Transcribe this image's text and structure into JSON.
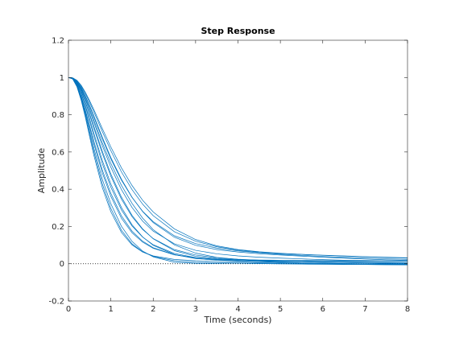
{
  "chart_data": {
    "type": "line",
    "title": "Step Response",
    "xlabel": "Time (seconds)",
    "ylabel": "Amplitude",
    "xlim": [
      0,
      8
    ],
    "ylim": [
      -0.2,
      1.2
    ],
    "xticks": [
      "0",
      "1",
      "2",
      "3",
      "4",
      "5",
      "6",
      "7",
      "8"
    ],
    "yticks": [
      "-0.2",
      "0",
      "0.2",
      "0.4",
      "0.6",
      "0.8",
      "1",
      "1.2"
    ],
    "grid": false,
    "box": true,
    "line_color": "#0072BD",
    "reference_line": {
      "y": 0,
      "style": "dotted",
      "color": "#000000"
    },
    "x": [
      0,
      0.1,
      0.2,
      0.3,
      0.4,
      0.5,
      0.6,
      0.8,
      1.0,
      1.25,
      1.5,
      1.75,
      2.0,
      2.5,
      3.0,
      3.5,
      4.0,
      4.5,
      5.0,
      5.5,
      6.0,
      6.5,
      7.0,
      7.5,
      8.0
    ],
    "series": [
      {
        "values": [
          1.0,
          0.997,
          0.976,
          0.939,
          0.889,
          0.831,
          0.77,
          0.649,
          0.539,
          0.421,
          0.324,
          0.245,
          0.183,
          0.101,
          0.057,
          0.034,
          0.023,
          0.018,
          0.015,
          0.015,
          0.015,
          0.014,
          0.014,
          0.015,
          0.015
        ]
      },
      {
        "values": [
          1.0,
          0.993,
          0.955,
          0.89,
          0.806,
          0.713,
          0.62,
          0.453,
          0.322,
          0.201,
          0.12,
          0.068,
          0.037,
          0.008,
          0.002,
          0.002,
          0.003,
          0.003,
          0.003,
          0.002,
          0.001,
          0.0,
          -0.001,
          -0.002,
          -0.003
        ]
      },
      {
        "values": [
          1.0,
          0.995,
          0.966,
          0.916,
          0.851,
          0.777,
          0.7,
          0.554,
          0.428,
          0.302,
          0.209,
          0.144,
          0.099,
          0.049,
          0.028,
          0.019,
          0.015,
          0.013,
          0.012,
          0.011,
          0.01,
          0.009,
          0.008,
          0.007,
          0.006
        ]
      },
      {
        "values": [
          1.0,
          0.998,
          0.983,
          0.953,
          0.913,
          0.866,
          0.815,
          0.709,
          0.607,
          0.493,
          0.398,
          0.32,
          0.258,
          0.172,
          0.121,
          0.091,
          0.073,
          0.062,
          0.055,
          0.05,
          0.045,
          0.041,
          0.037,
          0.033,
          0.03
        ]
      },
      {
        "values": [
          1.0,
          0.994,
          0.96,
          0.901,
          0.826,
          0.742,
          0.657,
          0.503,
          0.378,
          0.257,
          0.175,
          0.121,
          0.086,
          0.048,
          0.032,
          0.024,
          0.019,
          0.016,
          0.013,
          0.011,
          0.008,
          0.006,
          0.004,
          0.002,
          0.0
        ]
      },
      {
        "values": [
          1.0,
          0.996,
          0.971,
          0.928,
          0.87,
          0.805,
          0.737,
          0.603,
          0.482,
          0.358,
          0.26,
          0.187,
          0.134,
          0.07,
          0.04,
          0.027,
          0.022,
          0.02,
          0.019,
          0.018,
          0.017,
          0.016,
          0.015,
          0.014,
          0.014
        ]
      },
      {
        "values": [
          1.0,
          0.997,
          0.979,
          0.947,
          0.902,
          0.85,
          0.794,
          0.679,
          0.57,
          0.454,
          0.357,
          0.28,
          0.221,
          0.142,
          0.099,
          0.076,
          0.063,
          0.054,
          0.047,
          0.041,
          0.035,
          0.03,
          0.025,
          0.021,
          0.018
        ]
      },
      {
        "values": [
          1.0,
          0.992,
          0.95,
          0.878,
          0.785,
          0.682,
          0.582,
          0.408,
          0.279,
          0.168,
          0.101,
          0.063,
          0.042,
          0.023,
          0.016,
          0.012,
          0.009,
          0.006,
          0.003,
          0.001,
          -0.001,
          -0.003,
          -0.004,
          -0.005,
          -0.006
        ]
      },
      {
        "values": [
          1.0,
          0.996,
          0.974,
          0.935,
          0.882,
          0.822,
          0.759,
          0.633,
          0.518,
          0.398,
          0.302,
          0.229,
          0.175,
          0.107,
          0.072,
          0.053,
          0.042,
          0.035,
          0.03,
          0.026,
          0.022,
          0.019,
          0.017,
          0.015,
          0.013
        ]
      },
      {
        "values": [
          1.0,
          0.995,
          0.964,
          0.912,
          0.843,
          0.766,
          0.686,
          0.537,
          0.411,
          0.289,
          0.203,
          0.143,
          0.102,
          0.055,
          0.033,
          0.022,
          0.016,
          0.012,
          0.008,
          0.005,
          0.003,
          0.001,
          0.0,
          -0.001,
          -0.002
        ]
      },
      {
        "values": [
          1.0,
          0.997,
          0.978,
          0.944,
          0.898,
          0.844,
          0.787,
          0.671,
          0.563,
          0.449,
          0.356,
          0.282,
          0.226,
          0.15,
          0.108,
          0.084,
          0.069,
          0.059,
          0.051,
          0.045,
          0.039,
          0.034,
          0.03,
          0.026,
          0.023
        ]
      },
      {
        "values": [
          1.0,
          0.994,
          0.958,
          0.897,
          0.818,
          0.731,
          0.644,
          0.487,
          0.362,
          0.244,
          0.166,
          0.116,
          0.083,
          0.048,
          0.031,
          0.022,
          0.016,
          0.011,
          0.007,
          0.004,
          0.002,
          0.0,
          -0.001,
          -0.002,
          -0.002
        ]
      },
      {
        "values": [
          1.0,
          0.998,
          0.985,
          0.958,
          0.92,
          0.875,
          0.827,
          0.725,
          0.627,
          0.515,
          0.42,
          0.341,
          0.278,
          0.187,
          0.13,
          0.096,
          0.076,
          0.064,
          0.056,
          0.05,
          0.046,
          0.042,
          0.038,
          0.035,
          0.032
        ]
      },
      {
        "values": [
          1.0,
          0.996,
          0.97,
          0.925,
          0.866,
          0.798,
          0.728,
          0.591,
          0.47,
          0.347,
          0.253,
          0.184,
          0.135,
          0.076,
          0.047,
          0.032,
          0.024,
          0.019,
          0.015,
          0.012,
          0.009,
          0.007,
          0.005,
          0.004,
          0.003
        ]
      },
      {
        "values": [
          1.0,
          0.993,
          0.953,
          0.884,
          0.796,
          0.698,
          0.601,
          0.428,
          0.297,
          0.18,
          0.107,
          0.064,
          0.039,
          0.016,
          0.008,
          0.005,
          0.003,
          0.001,
          -0.001,
          -0.002,
          -0.003,
          -0.004,
          -0.004,
          -0.005,
          -0.005
        ]
      }
    ]
  }
}
